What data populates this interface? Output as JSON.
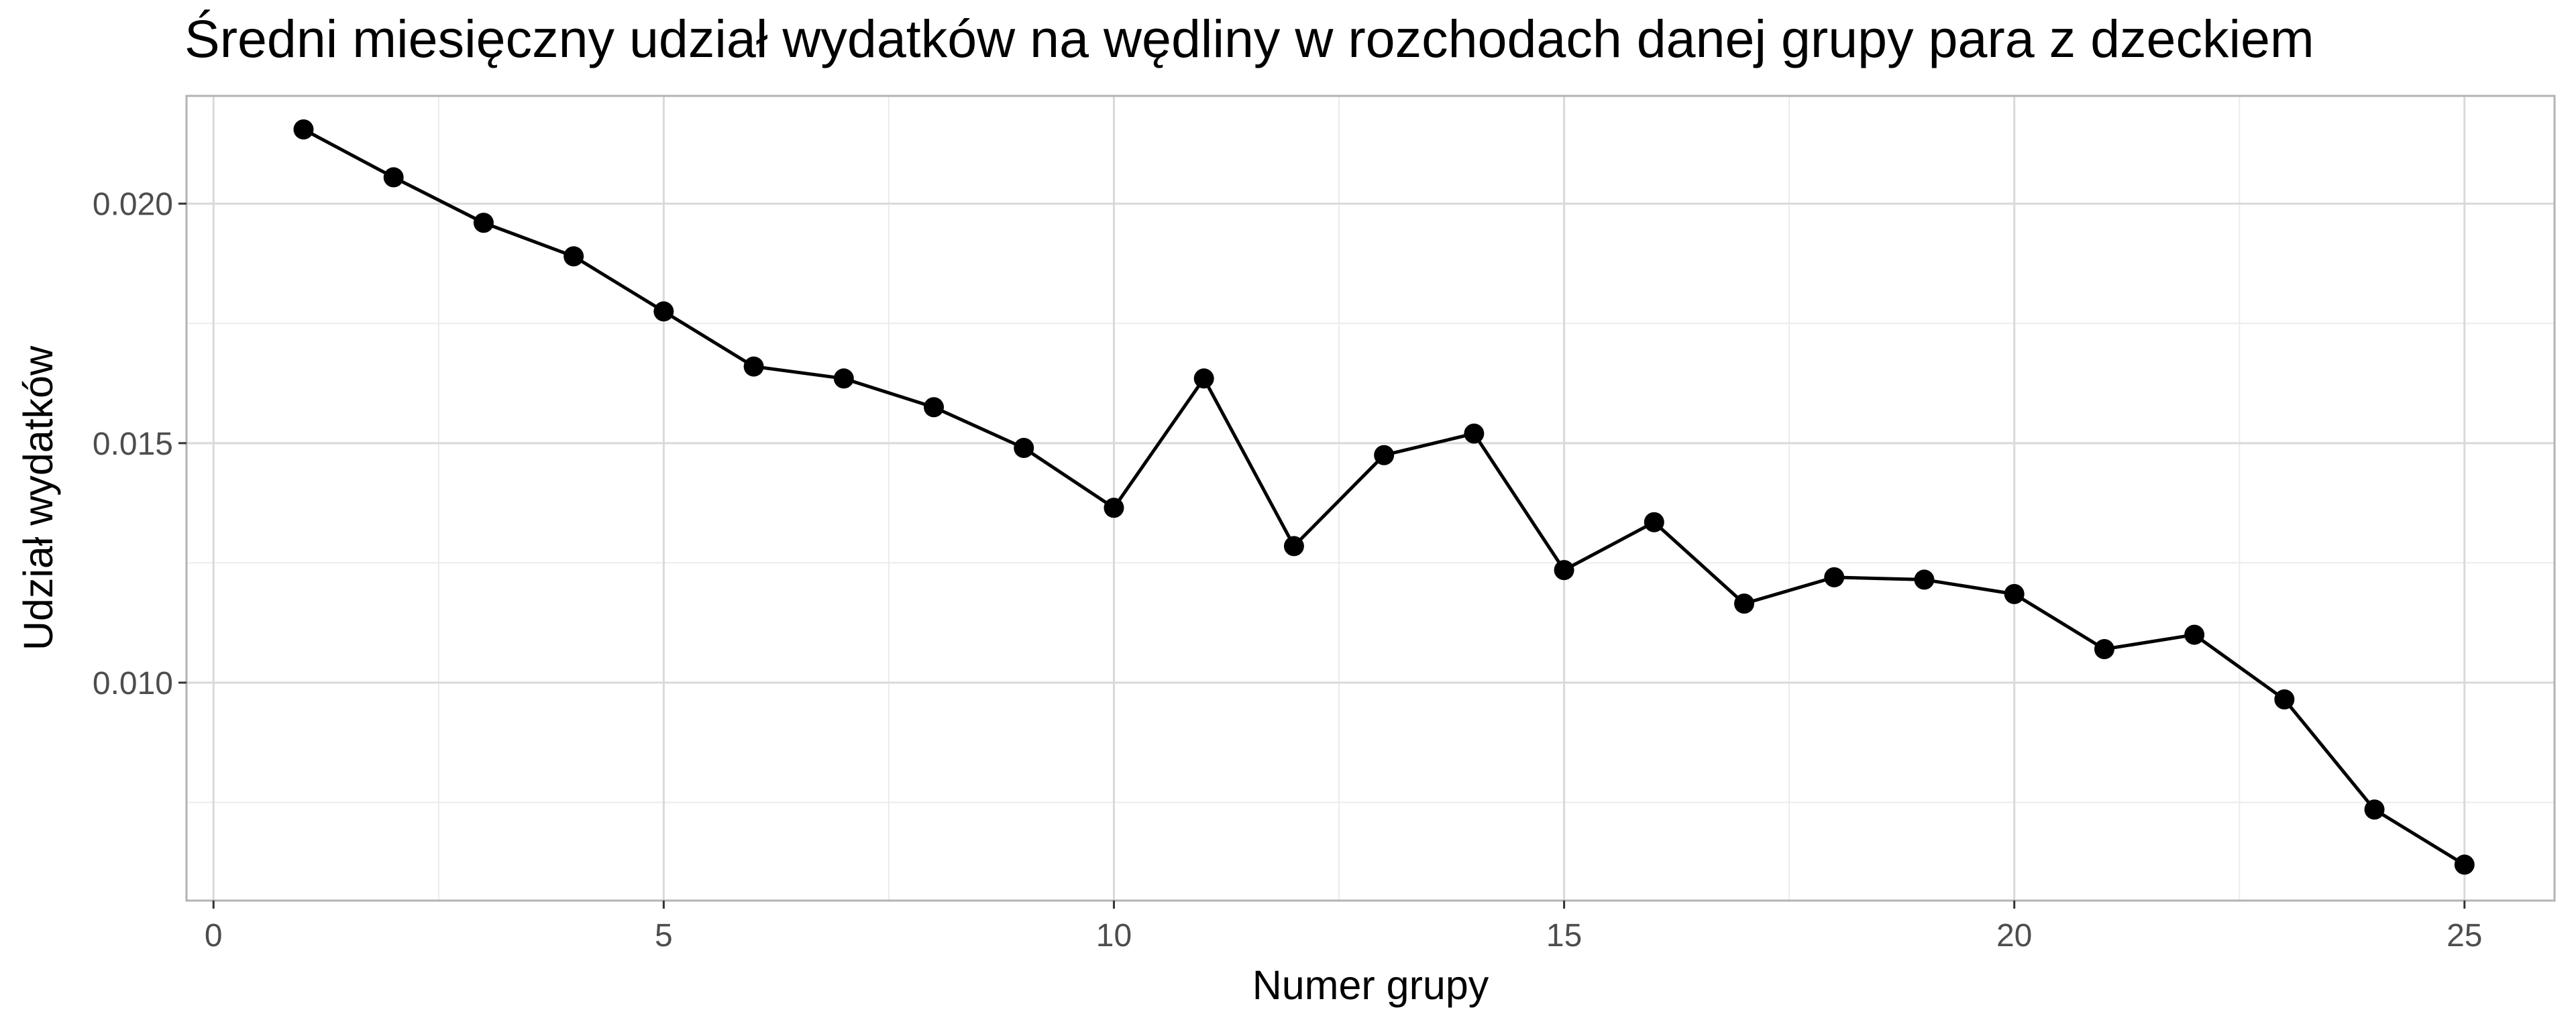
{
  "chart_data": {
    "type": "line",
    "title": "Średni miesięczny udział wydatków na wędliny w rozchodach danej grupy para z dzeckiem",
    "xlabel": "Numer grupy",
    "ylabel": "Udział wydatków",
    "xlim": [
      -0.3,
      26.0
    ],
    "ylim": [
      0.00545,
      0.02225
    ],
    "x_ticks": [
      0,
      5,
      10,
      15,
      20,
      25
    ],
    "x_tick_labels": [
      "0",
      "5",
      "10",
      "15",
      "20",
      "25"
    ],
    "y_ticks": [
      0.01,
      0.015,
      0.02
    ],
    "y_tick_labels": [
      "0.010",
      "0.015",
      "0.020"
    ],
    "grid": true,
    "series": [
      {
        "color": "#000000",
        "x": [
          1,
          2,
          3,
          4,
          5,
          6,
          7,
          8,
          9,
          10,
          11,
          12,
          13,
          14,
          15,
          16,
          17,
          18,
          19,
          20,
          21,
          22,
          23,
          24,
          25
        ],
        "y": [
          0.02155,
          0.02055,
          0.0196,
          0.0189,
          0.01775,
          0.0166,
          0.01635,
          0.01575,
          0.0149,
          0.01365,
          0.01635,
          0.01285,
          0.01475,
          0.0152,
          0.01235,
          0.01335,
          0.01165,
          0.0122,
          0.01215,
          0.01185,
          0.0107,
          0.011,
          0.00965,
          0.00735,
          0.0062
        ]
      }
    ]
  }
}
